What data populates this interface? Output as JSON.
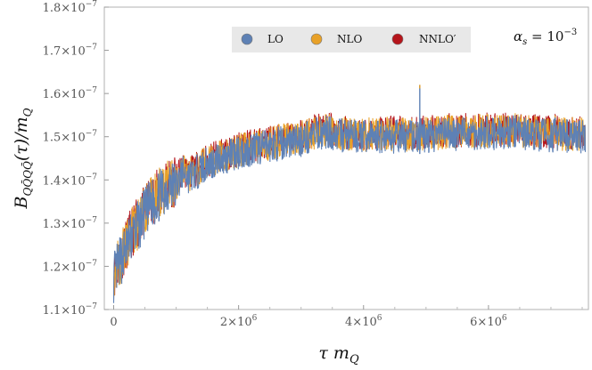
{
  "chart_data": {
    "type": "line",
    "title": "",
    "xlabel": "τ m_Q",
    "ylabel": "B_{Q Q̄ Q Q̄}(τ)/m_Q",
    "annotation": "α_s = 10^{-3}",
    "xlim": [
      -150000,
      7600000
    ],
    "ylim": [
      1.1e-07,
      1.8e-07
    ],
    "x_ticks": [
      {
        "value": 0,
        "mantissa": "0",
        "exp": ""
      },
      {
        "value": 2000000,
        "mantissa": "2×10",
        "exp": "6"
      },
      {
        "value": 4000000,
        "mantissa": "4×10",
        "exp": "6"
      },
      {
        "value": 6000000,
        "mantissa": "6×10",
        "exp": "6"
      }
    ],
    "y_ticks": [
      {
        "value": 1.1e-07,
        "mantissa": "1.1×10",
        "exp": "−7"
      },
      {
        "value": 1.2e-07,
        "mantissa": "1.2×10",
        "exp": "−7"
      },
      {
        "value": 1.3e-07,
        "mantissa": "1.3×10",
        "exp": "−7"
      },
      {
        "value": 1.4e-07,
        "mantissa": "1.4×10",
        "exp": "−7"
      },
      {
        "value": 1.5e-07,
        "mantissa": "1.5×10",
        "exp": "−7"
      },
      {
        "value": 1.6e-07,
        "mantissa": "1.6×10",
        "exp": "−7"
      },
      {
        "value": 1.7e-07,
        "mantissa": "1.7×10",
        "exp": "−7"
      },
      {
        "value": 1.8e-07,
        "mantissa": "1.8×10",
        "exp": "−7"
      }
    ],
    "grid": false,
    "legend_position": "top-center",
    "series": [
      {
        "name": "NNLO′",
        "color": "#b5151b",
        "x": [
          0,
          100000,
          200000,
          300000,
          400000,
          500000,
          600000,
          700000,
          800000,
          900000,
          1000000,
          1100000,
          1200000,
          1300000,
          1400000,
          1500000,
          1600000,
          1700000,
          1800000,
          1900000,
          2000000,
          2200000,
          2400000,
          2600000,
          2800000,
          3000000,
          3200000,
          3400000,
          3600000,
          3800000,
          4000000,
          4200000,
          4400000,
          4600000,
          4800000,
          4900000,
          5000000,
          5200000,
          5400000,
          5600000,
          5800000,
          6000000,
          6200000,
          6400000,
          6600000,
          6800000,
          7000000,
          7200000,
          7400000,
          7550000
        ],
        "y": [
          1.182e-07,
          1.218e-07,
          1.25e-07,
          1.282e-07,
          1.303e-07,
          1.33e-07,
          1.352e-07,
          1.366e-07,
          1.383e-07,
          1.395e-07,
          1.395e-07,
          1.425e-07,
          1.415e-07,
          1.422e-07,
          1.435e-07,
          1.445e-07,
          1.45e-07,
          1.458e-07,
          1.461e-07,
          1.465e-07,
          1.471e-07,
          1.479e-07,
          1.484e-07,
          1.49e-07,
          1.497e-07,
          1.5e-07,
          1.512e-07,
          1.519e-07,
          1.512e-07,
          1.51e-07,
          1.507e-07,
          1.509e-07,
          1.51e-07,
          1.507e-07,
          1.51e-07,
          1.512e-07,
          1.509e-07,
          1.512e-07,
          1.515e-07,
          1.515e-07,
          1.515e-07,
          1.517e-07,
          1.514e-07,
          1.52e-07,
          1.515e-07,
          1.512e-07,
          1.512e-07,
          1.509e-07,
          1.509e-07,
          1.51e-07
        ]
      },
      {
        "name": "NLO",
        "color": "#e8a128",
        "x": [
          0,
          100000,
          200000,
          300000,
          400000,
          500000,
          600000,
          700000,
          800000,
          900000,
          1000000,
          1100000,
          1200000,
          1300000,
          1400000,
          1500000,
          1600000,
          1700000,
          1800000,
          1900000,
          2000000,
          2200000,
          2400000,
          2600000,
          2800000,
          3000000,
          3200000,
          3400000,
          3600000,
          3800000,
          4000000,
          4200000,
          4400000,
          4600000,
          4800000,
          4900000,
          5000000,
          5200000,
          5400000,
          5600000,
          5800000,
          6000000,
          6200000,
          6400000,
          6600000,
          6800000,
          7000000,
          7200000,
          7400000,
          7550000
        ],
        "y": [
          1.18e-07,
          1.215e-07,
          1.247e-07,
          1.279e-07,
          1.3e-07,
          1.327e-07,
          1.349e-07,
          1.363e-07,
          1.38e-07,
          1.392e-07,
          1.392e-07,
          1.422e-07,
          1.412e-07,
          1.419e-07,
          1.432e-07,
          1.442e-07,
          1.447e-07,
          1.455e-07,
          1.458e-07,
          1.462e-07,
          1.468e-07,
          1.476e-07,
          1.481e-07,
          1.487e-07,
          1.494e-07,
          1.497e-07,
          1.509e-07,
          1.516e-07,
          1.509e-07,
          1.507e-07,
          1.504e-07,
          1.506e-07,
          1.507e-07,
          1.504e-07,
          1.507e-07,
          1.509e-07,
          1.506e-07,
          1.509e-07,
          1.512e-07,
          1.512e-07,
          1.512e-07,
          1.514e-07,
          1.511e-07,
          1.517e-07,
          1.512e-07,
          1.509e-07,
          1.509e-07,
          1.506e-07,
          1.506e-07,
          1.507e-07
        ]
      },
      {
        "name": "LO",
        "color": "#5e81b5",
        "x": [
          0,
          100000,
          200000,
          300000,
          400000,
          500000,
          600000,
          700000,
          800000,
          900000,
          1000000,
          1100000,
          1200000,
          1300000,
          1400000,
          1500000,
          1600000,
          1700000,
          1800000,
          1900000,
          2000000,
          2200000,
          2400000,
          2600000,
          2800000,
          3000000,
          3200000,
          3400000,
          3600000,
          3800000,
          4000000,
          4200000,
          4400000,
          4600000,
          4800000,
          4900000,
          5000000,
          5200000,
          5400000,
          5600000,
          5800000,
          6000000,
          6200000,
          6400000,
          6600000,
          6800000,
          7000000,
          7200000,
          7400000,
          7550000
        ],
        "y": [
          1.175e-07,
          1.21e-07,
          1.242e-07,
          1.274e-07,
          1.295e-07,
          1.322e-07,
          1.344e-07,
          1.358e-07,
          1.375e-07,
          1.387e-07,
          1.387e-07,
          1.417e-07,
          1.407e-07,
          1.414e-07,
          1.427e-07,
          1.437e-07,
          1.442e-07,
          1.45e-07,
          1.453e-07,
          1.457e-07,
          1.463e-07,
          1.471e-07,
          1.476e-07,
          1.482e-07,
          1.489e-07,
          1.492e-07,
          1.504e-07,
          1.511e-07,
          1.504e-07,
          1.502e-07,
          1.499e-07,
          1.501e-07,
          1.502e-07,
          1.499e-07,
          1.502e-07,
          1.504e-07,
          1.501e-07,
          1.504e-07,
          1.507e-07,
          1.507e-07,
          1.507e-07,
          1.509e-07,
          1.506e-07,
          1.512e-07,
          1.507e-07,
          1.504e-07,
          1.504e-07,
          1.501e-07,
          1.501e-07,
          1.502e-07
        ]
      }
    ],
    "spikes": [
      {
        "x": 4900000,
        "y_top": 1.62e-07,
        "y_bottom": 1.46e-07
      }
    ]
  }
}
